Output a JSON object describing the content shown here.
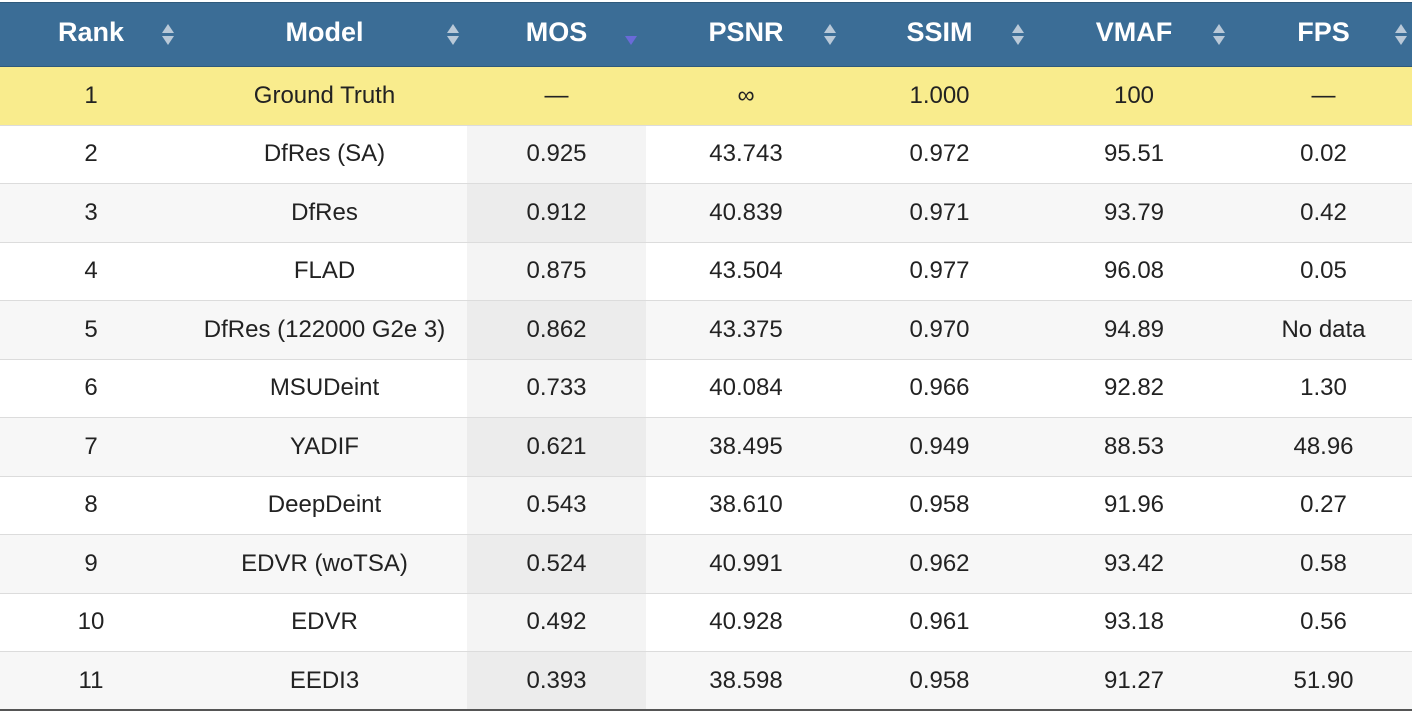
{
  "table": {
    "columns": [
      {
        "label": "Rank",
        "sort": "none"
      },
      {
        "label": "Model",
        "sort": "none"
      },
      {
        "label": "MOS",
        "sort": "descending"
      },
      {
        "label": "PSNR",
        "sort": "none"
      },
      {
        "label": "SSIM",
        "sort": "none"
      },
      {
        "label": "VMAF",
        "sort": "none"
      },
      {
        "label": "FPS",
        "sort": "none"
      }
    ],
    "sorted_column": "MOS",
    "colors": {
      "header_bg": "#3b6d96",
      "header_text": "#ffffff",
      "highlight_row_bg": "#f9ec8d",
      "sort_active_arrow": "#6a6ad8",
      "sort_inactive_arrow": "#b9c9d8"
    },
    "rows": [
      {
        "rank": "1",
        "model": "Ground Truth",
        "mos": "—",
        "psnr": "∞",
        "ssim": "1.000",
        "vmaf": "100",
        "fps": "—",
        "highlighted": true
      },
      {
        "rank": "2",
        "model": "DfRes (SA)",
        "mos": "0.925",
        "psnr": "43.743",
        "ssim": "0.972",
        "vmaf": "95.51",
        "fps": "0.02"
      },
      {
        "rank": "3",
        "model": "DfRes",
        "mos": "0.912",
        "psnr": "40.839",
        "ssim": "0.971",
        "vmaf": "93.79",
        "fps": "0.42"
      },
      {
        "rank": "4",
        "model": "FLAD",
        "mos": "0.875",
        "psnr": "43.504",
        "ssim": "0.977",
        "vmaf": "96.08",
        "fps": "0.05"
      },
      {
        "rank": "5",
        "model": "DfRes (122000 G2e 3)",
        "mos": "0.862",
        "psnr": "43.375",
        "ssim": "0.970",
        "vmaf": "94.89",
        "fps": "No data"
      },
      {
        "rank": "6",
        "model": "MSUDeint",
        "mos": "0.733",
        "psnr": "40.084",
        "ssim": "0.966",
        "vmaf": "92.82",
        "fps": "1.30"
      },
      {
        "rank": "7",
        "model": "YADIF",
        "mos": "0.621",
        "psnr": "38.495",
        "ssim": "0.949",
        "vmaf": "88.53",
        "fps": "48.96"
      },
      {
        "rank": "8",
        "model": "DeepDeint",
        "mos": "0.543",
        "psnr": "38.610",
        "ssim": "0.958",
        "vmaf": "91.96",
        "fps": "0.27"
      },
      {
        "rank": "9",
        "model": "EDVR (woTSA)",
        "mos": "0.524",
        "psnr": "40.991",
        "ssim": "0.962",
        "vmaf": "93.42",
        "fps": "0.58"
      },
      {
        "rank": "10",
        "model": "EDVR",
        "mos": "0.492",
        "psnr": "40.928",
        "ssim": "0.961",
        "vmaf": "93.18",
        "fps": "0.56"
      },
      {
        "rank": "11",
        "model": "EEDI3",
        "mos": "0.393",
        "psnr": "38.598",
        "ssim": "0.958",
        "vmaf": "91.27",
        "fps": "51.90"
      }
    ]
  }
}
